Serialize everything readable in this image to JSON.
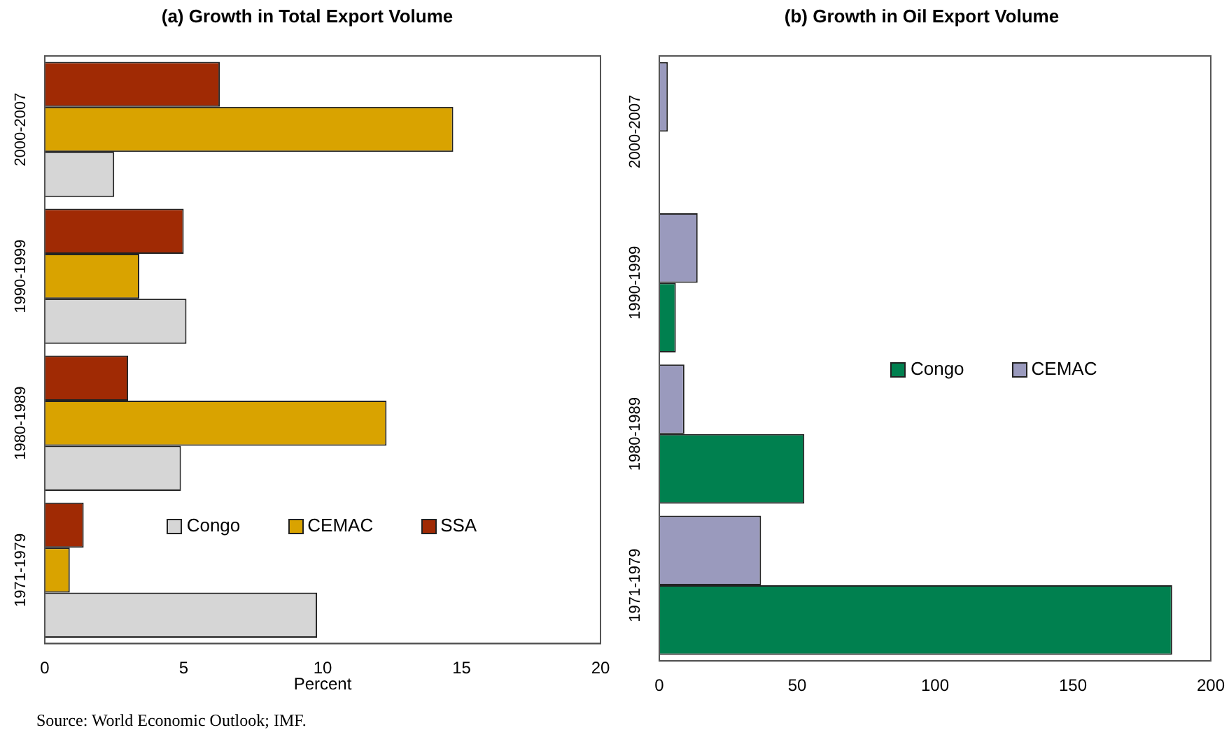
{
  "chart_data": [
    {
      "type": "bar",
      "orientation": "horizontal",
      "title": "(a) Growth in Total Export Volume",
      "xlabel": "Percent",
      "categories": [
        "2000-2007",
        "1990-1999",
        "1980-1989",
        "1971-1979"
      ],
      "series": [
        {
          "name": "SSA",
          "color": "#a02a04",
          "values": [
            6.3,
            5.0,
            3.0,
            1.4
          ]
        },
        {
          "name": "CEMAC",
          "color": "#d9a300",
          "values": [
            14.7,
            3.4,
            12.3,
            0.9
          ]
        },
        {
          "name": "Congo",
          "color": "#d6d6d6",
          "values": [
            2.5,
            5.1,
            4.9,
            9.8
          ]
        }
      ],
      "xlim": [
        0,
        20
      ],
      "xticks": [
        0,
        5,
        10,
        15,
        20
      ],
      "legend": "bottom right",
      "annotations": [
        "Source: World Economic Outlook; IMF."
      ]
    },
    {
      "type": "bar",
      "orientation": "horizontal",
      "title": "(b) Growth in Oil Export Volume",
      "categories": [
        "2000-2007",
        "1990-1999",
        "1980-1989",
        "1971-1979"
      ],
      "series": [
        {
          "name": "CEMAC",
          "color": "#9a9abd",
          "values": [
            3.1,
            13.9,
            9.1,
            36.9
          ]
        },
        {
          "name": "Congo",
          "color": "#00804f",
          "values": [
            null,
            6.0,
            52.6,
            186
          ]
        }
      ],
      "xlim": [
        0,
        200
      ],
      "xticks": [
        0,
        50,
        100,
        150,
        200
      ],
      "legend": "right"
    }
  ]
}
